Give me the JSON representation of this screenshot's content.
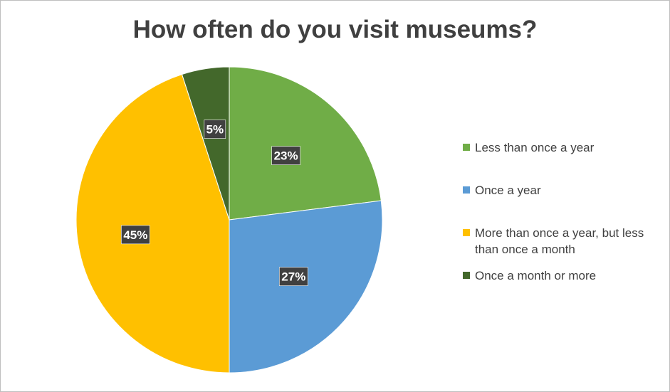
{
  "chart_data": {
    "type": "pie",
    "title": "How often do you visit museums?",
    "categories": [
      "Less than once a year",
      "Once a year",
      "More than once a year, but less than once a month",
      "Once a month or more"
    ],
    "values": [
      23,
      27,
      45,
      5
    ],
    "labels": [
      "23%",
      "27%",
      "45%",
      "5%"
    ],
    "colors": [
      "#70ad47",
      "#5b9bd5",
      "#ffc000",
      "#43682b"
    ],
    "legend_position": "right"
  }
}
